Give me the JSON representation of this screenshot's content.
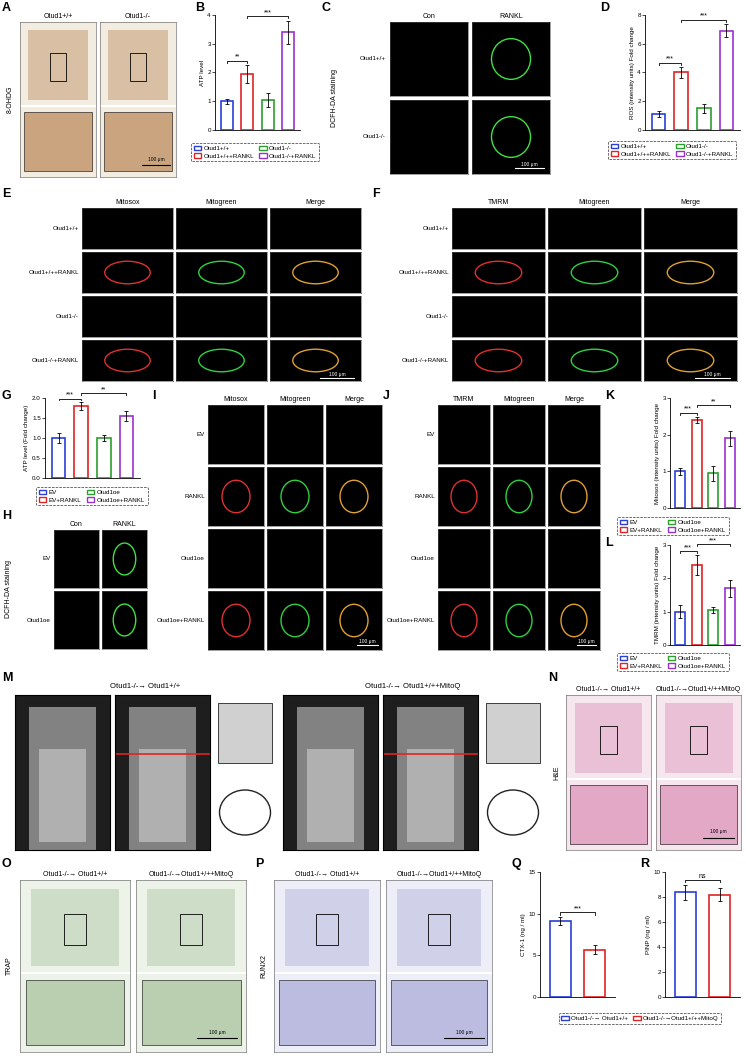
{
  "chart_data": [
    {
      "letter": "B",
      "type": "bar",
      "ylabel": "ATP level",
      "categories": [
        "Otud1+/+",
        "Otud1+/++RANKL",
        "Otud1-/-",
        "Otud1-/-+RANKL"
      ],
      "values": [
        1.0,
        1.95,
        1.05,
        3.4
      ],
      "errors": [
        0.08,
        0.3,
        0.25,
        0.4
      ],
      "colors": [
        "#2a3fd6",
        "#e02424",
        "#2ca02c",
        "#9b30d0"
      ],
      "ylim": [
        0,
        4
      ],
      "yticks": [
        0,
        1,
        2,
        3,
        4
      ],
      "significance": [
        {
          "from": 0,
          "to": 1,
          "text": "**"
        },
        {
          "from": 1,
          "to": 3,
          "text": "***"
        }
      ],
      "legend": "below",
      "tick_labels": "y"
    },
    {
      "letter": "D",
      "type": "bar",
      "ylabel": "ROS (intensity units) Fold change",
      "categories": [
        "Otud1+/+",
        "Otud1+/++RANKL",
        "Otud1-/-",
        "Otud1-/-+RANKL"
      ],
      "values": [
        1.1,
        4.0,
        1.5,
        6.9
      ],
      "errors": [
        0.2,
        0.35,
        0.3,
        0.45
      ],
      "colors": [
        "#2a3fd6",
        "#e02424",
        "#2ca02c",
        "#9b30d0"
      ],
      "ylim": [
        0,
        8
      ],
      "yticks": [
        0,
        2,
        4,
        6,
        8
      ],
      "significance": [
        {
          "from": 0,
          "to": 1,
          "text": "***"
        },
        {
          "from": 1,
          "to": 3,
          "text": "***"
        }
      ],
      "legend": "below",
      "tick_labels": "y"
    },
    {
      "letter": "G",
      "type": "bar",
      "ylabel": "ATP level (Fold change)",
      "categories": [
        "EV",
        "EV+RANKL",
        "Otud1oe",
        "Otud1oe+RANKL"
      ],
      "values": [
        1.0,
        1.8,
        1.0,
        1.55
      ],
      "errors": [
        0.12,
        0.1,
        0.08,
        0.12
      ],
      "colors": [
        "#2a3fd6",
        "#e02424",
        "#2ca02c",
        "#9b30d0"
      ],
      "ylim": [
        0,
        2
      ],
      "yticks": [
        {
          "value": 0,
          "label": "0.0"
        },
        {
          "value": 0.5,
          "label": "0.5"
        },
        {
          "value": 1,
          "label": "1.0"
        },
        {
          "value": 1.5,
          "label": "1.5"
        },
        {
          "value": 2,
          "label": "2.0"
        }
      ],
      "significance": [
        {
          "from": 0,
          "to": 1,
          "text": "***"
        },
        {
          "from": 1,
          "to": 3,
          "text": "**"
        }
      ],
      "legend": "below",
      "tick_labels": "y"
    },
    {
      "letter": "K",
      "type": "bar",
      "ylabel": "Mitosox (intensity units) Fold change",
      "categories": [
        "EV",
        "EV+RANKL",
        "Otud1oe",
        "Otud1oe+RANKL"
      ],
      "values": [
        1.0,
        2.4,
        0.95,
        1.9
      ],
      "errors": [
        0.1,
        0.08,
        0.2,
        0.2
      ],
      "colors": [
        "#2a3fd6",
        "#e02424",
        "#2ca02c",
        "#9b30d0"
      ],
      "ylim": [
        0,
        3
      ],
      "yticks": [
        0,
        1,
        2,
        3
      ],
      "significance": [
        {
          "from": 0,
          "to": 1,
          "text": "***"
        },
        {
          "from": 1,
          "to": 3,
          "text": "**"
        }
      ],
      "legend": "below",
      "tick_labels": "y"
    },
    {
      "letter": "L",
      "type": "bar",
      "ylabel": "TMRM (intensity units) Fold change",
      "categories": [
        "EV",
        "EV+RANKL",
        "Otud1oe",
        "Otud1oe+RANKL"
      ],
      "values": [
        1.0,
        2.4,
        1.05,
        1.7
      ],
      "errors": [
        0.2,
        0.3,
        0.1,
        0.25
      ],
      "colors": [
        "#2a3fd6",
        "#e02424",
        "#2ca02c",
        "#9b30d0"
      ],
      "ylim": [
        0,
        3
      ],
      "yticks": [
        0,
        1,
        2,
        3
      ],
      "significance": [
        {
          "from": 0,
          "to": 1,
          "text": "***"
        },
        {
          "from": 1,
          "to": 3,
          "text": "***"
        }
      ],
      "legend": "below",
      "tick_labels": "y"
    },
    {
      "letter": "Q",
      "type": "bar",
      "ylabel": "CTX-1 (ng / ml)",
      "categories": [
        "Otud1-/-→ Otud1+/+",
        "Otud1-/-→Otud1+/++MitoQ"
      ],
      "values": [
        9.1,
        5.7
      ],
      "errors": [
        0.5,
        0.5
      ],
      "colors": [
        "#2a3fd6",
        "#e02424"
      ],
      "ylim": [
        0,
        15
      ],
      "yticks": [
        0,
        5,
        10,
        15
      ],
      "significance": [
        {
          "from": 0,
          "to": 1,
          "text": "***"
        }
      ],
      "legend": "below",
      "tick_labels": "y"
    },
    {
      "letter": "R",
      "type": "bar",
      "ylabel": "PINP (ng / ml)",
      "categories": [
        "Otud1-/-→ Otud1+/+",
        "Otud1-/-→Otud1+/++MitoQ"
      ],
      "values": [
        8.4,
        8.2
      ],
      "errors": [
        0.6,
        0.5
      ],
      "colors": [
        "#2a3fd6",
        "#e02424"
      ],
      "ylim": [
        0,
        10
      ],
      "yticks": [
        0,
        2,
        4,
        6,
        8,
        10
      ],
      "significance": [
        {
          "from": 0,
          "to": 1,
          "text": "ns"
        }
      ],
      "tick_labels": "y"
    }
  ],
  "image_panels": [
    {
      "letter": "A",
      "column_titles": [
        "Otud1+/+",
        "Otud1-/-"
      ],
      "side_label": "8-OHDG",
      "scale_bar": "100 μm"
    },
    {
      "letter": "C",
      "column_titles": [
        "Con",
        "RANKL"
      ],
      "row_labels": [
        "Otud1+/+",
        "Otud1-/-"
      ],
      "side_label": "DCFH-DA staining",
      "scale_bar": "100 μm"
    },
    {
      "letter": "E",
      "column_titles": [
        "Mitosox",
        "Mitogreen",
        "Merge"
      ],
      "row_labels": [
        "Otud1+/+",
        "Otud1+/++RANKL",
        "Otud1-/-",
        "Otud1-/-+RANKL"
      ],
      "scale_bar": "100 μm"
    },
    {
      "letter": "F",
      "column_titles": [
        "TMRM",
        "Mitogreen",
        "Merge"
      ],
      "row_labels": [
        "Otud1+/+",
        "Otud1+/++RANKL",
        "Otud1-/-",
        "Otud1-/-+RANKL"
      ],
      "scale_bar": "100 μm"
    },
    {
      "letter": "H",
      "column_titles": [
        "Con",
        "RANKL"
      ],
      "row_labels": [
        "EV",
        "Otud1oe"
      ],
      "side_label": "DCFH-DA staining"
    },
    {
      "letter": "I",
      "column_titles": [
        "Mitosox",
        "Mitogreen",
        "Merge"
      ],
      "row_labels": [
        "EV",
        "RANKL",
        "Otud1oe",
        "Otud1oe+RANKL"
      ],
      "scale_bar": "100 μm"
    },
    {
      "letter": "J",
      "column_titles": [
        "TMRM",
        "Mitogreen",
        "Merge"
      ],
      "row_labels": [
        "EV",
        "RANKL",
        "Otud1oe",
        "Otud1oe+RANKL"
      ],
      "scale_bar": "100 μm"
    },
    {
      "letter": "M",
      "column_titles": [
        "Otud1-/-→ Otud1+/+",
        "Otud1-/-→ Otud1+/++MitoQ"
      ]
    },
    {
      "letter": "N",
      "column_titles": [
        "Otud1-/-→ Otud1+/+",
        "Otud1-/-→Otud1+/++MitoQ"
      ],
      "side_label": "H&E",
      "scale_bar": "100 μm"
    },
    {
      "letter": "O",
      "column_titles": [
        "Otud1-/-→ Otud1+/+",
        "Otud1-/-→Otud1+/++MitoQ"
      ],
      "side_label": "TRAP",
      "scale_bar": "100 μm"
    },
    {
      "letter": "P",
      "column_titles": [
        "Otud1-/-→ Otud1+/+",
        "Otud1-/-→Otud1+/++MitoQ"
      ],
      "side_label": "RUNX2",
      "scale_bar": "100 μm"
    }
  ]
}
